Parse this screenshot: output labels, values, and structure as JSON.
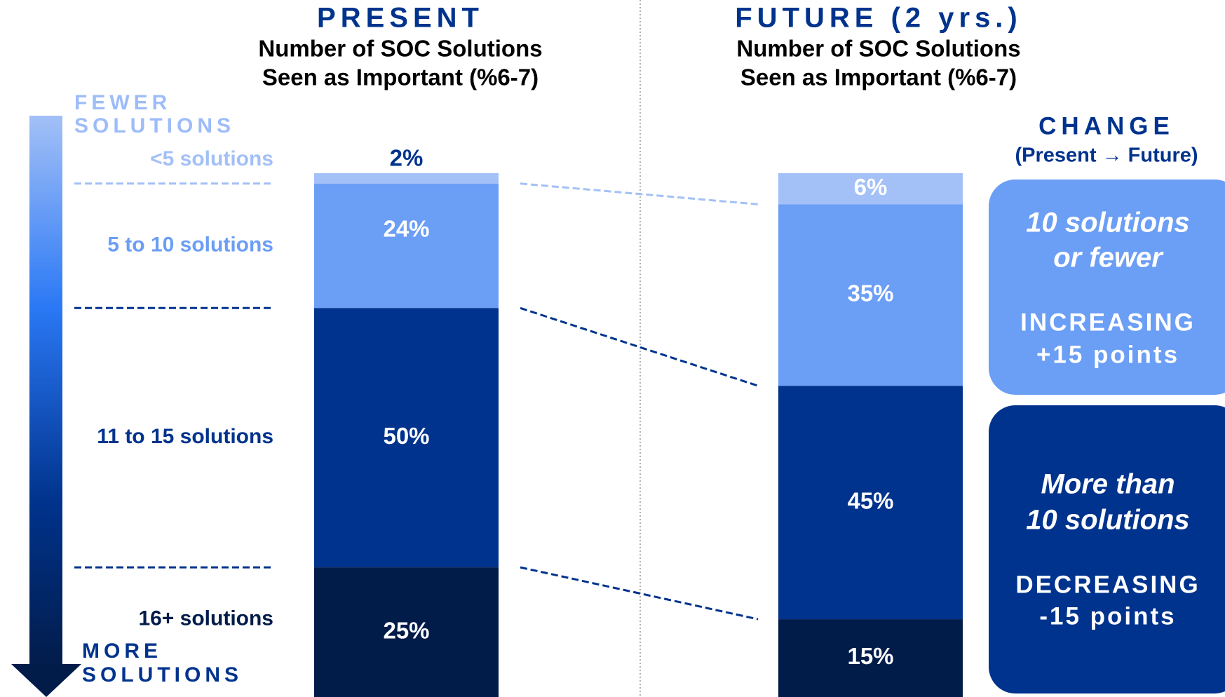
{
  "chart_data": {
    "type": "bar",
    "stacked": true,
    "categories": [
      "PRESENT",
      "FUTURE (2 yrs.)"
    ],
    "subtitles": [
      [
        "Number of SOC Solutions",
        "Seen as Important (%6-7)"
      ],
      [
        "Number of SOC Solutions",
        "Seen as Important (%6-7)"
      ]
    ],
    "series": [
      {
        "name": "<5 solutions",
        "color": "#a3c0f7",
        "values": [
          2,
          6
        ],
        "value_labels": [
          "2%",
          "6%"
        ]
      },
      {
        "name": "5 to 10 solutions",
        "color": "#6b9ef5",
        "values": [
          24,
          35
        ],
        "value_labels": [
          "24%",
          "35%"
        ]
      },
      {
        "name": "11 to 15 solutions",
        "color": "#00338d",
        "values": [
          50,
          45
        ],
        "value_labels": [
          "50%",
          "45%"
        ]
      },
      {
        "name": "16+ solutions",
        "color": "#021c4a",
        "values": [
          25,
          15
        ],
        "value_labels": [
          "25%",
          "15%"
        ]
      }
    ],
    "annotations": {
      "top_arrow_label": [
        "FEWER",
        "SOLUTIONS"
      ],
      "bottom_arrow_label": [
        "MORE",
        "SOLUTIONS"
      ],
      "change_title": "CHANGE",
      "change_subtitle": "(Present → Future)",
      "boxes": [
        {
          "heading": [
            "10 solutions",
            "or fewer"
          ],
          "body": [
            "INCREASING",
            "+15 points"
          ],
          "color": "#6b9ef5"
        },
        {
          "heading": [
            "More than",
            "10 solutions"
          ],
          "body": [
            "DECREASING",
            "-15 points"
          ],
          "color": "#00338d"
        }
      ]
    }
  }
}
